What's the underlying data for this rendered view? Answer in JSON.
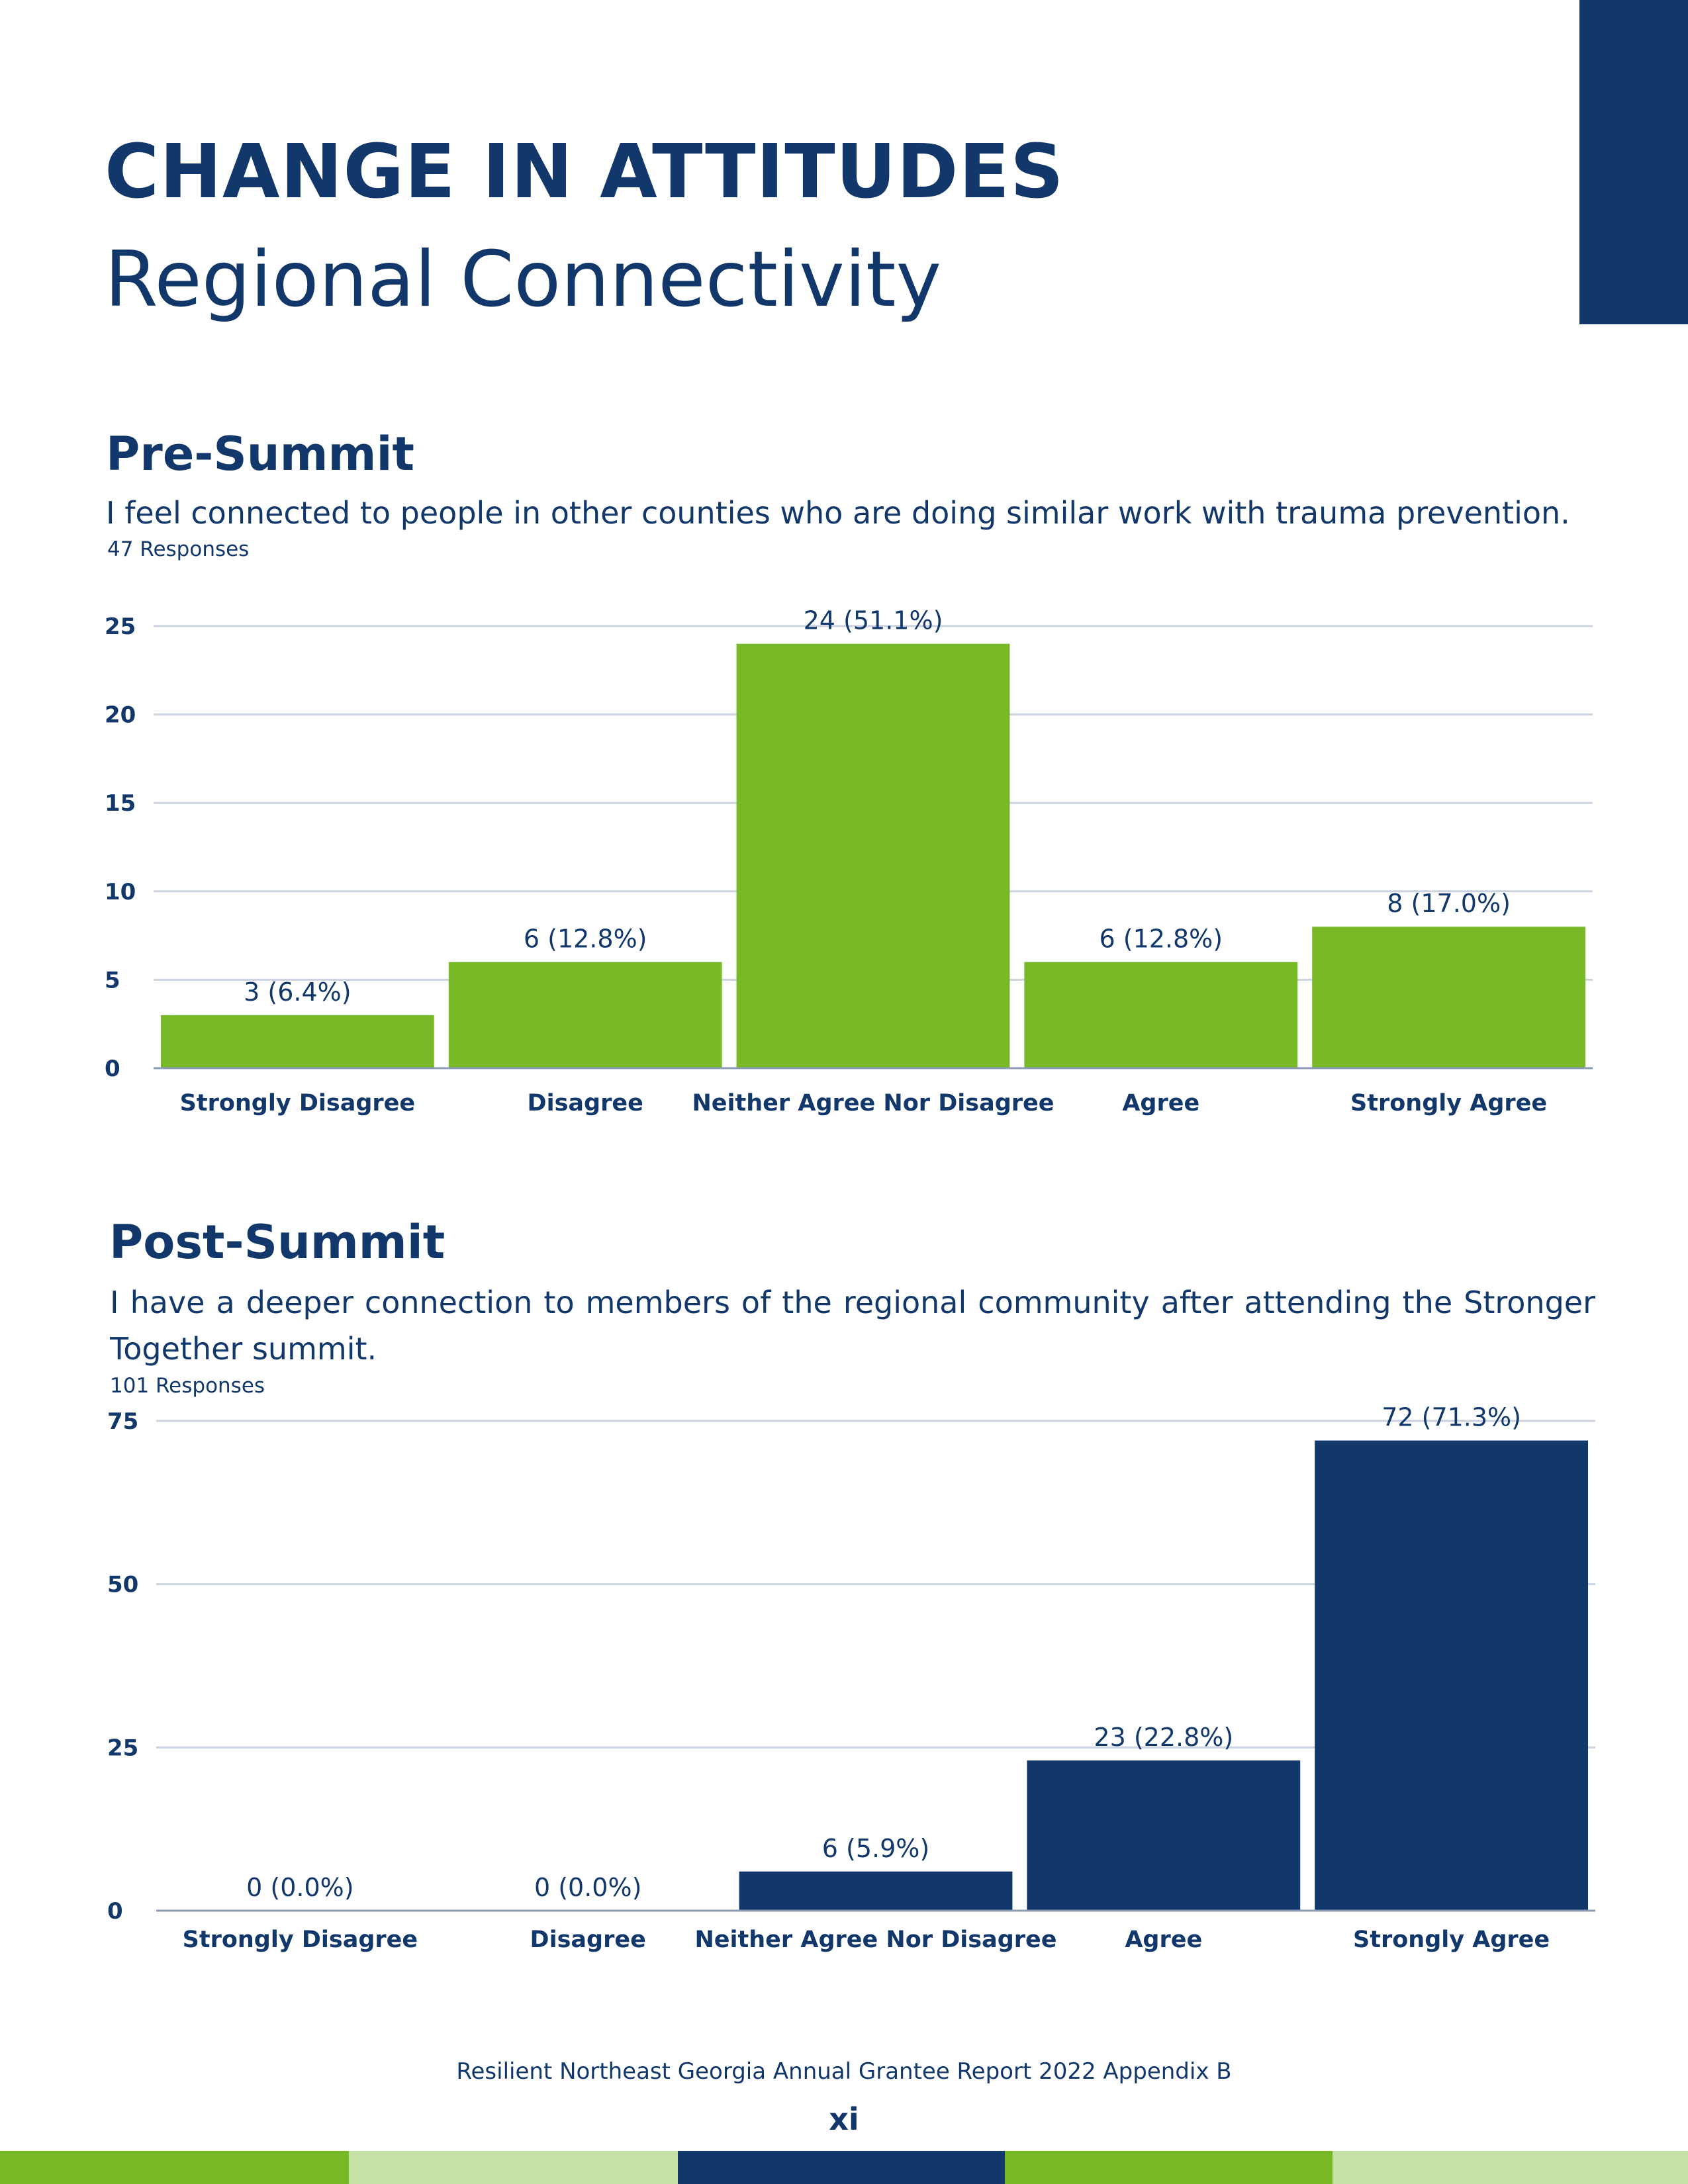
{
  "header": {
    "title": "CHANGE IN ATTITUDES",
    "subtitle": "Regional Connectivity"
  },
  "colors": {
    "navy": "#12386b",
    "green": "#78b928",
    "light_green": "#c5e1a5",
    "grid": "#c9d2de"
  },
  "sections": [
    {
      "heading": "Pre-Summit",
      "question": "I feel connected to people in other counties who are doing similar work with trauma prevention.",
      "responses": "47 Responses"
    },
    {
      "heading": "Post-Summit",
      "question": "I have a deeper connection to members of the regional community after attending the Stronger Together summit.",
      "responses": "101 Responses"
    }
  ],
  "chart_data": [
    {
      "type": "bar",
      "categories": [
        "Strongly Disagree",
        "Disagree",
        "Neither Agree Nor Disagree",
        "Agree",
        "Strongly Agree"
      ],
      "values": [
        3,
        6,
        24,
        6,
        8
      ],
      "data_labels": [
        "3 (6.4%)",
        "6 (12.8%)",
        "24 (51.1%)",
        "6 (12.8%)",
        "8 (17.0%)"
      ],
      "yticks": [
        0,
        5,
        10,
        15,
        20,
        25
      ],
      "ylim": [
        0,
        25
      ],
      "grid": true,
      "color": "#78b928"
    },
    {
      "type": "bar",
      "categories": [
        "Strongly Disagree",
        "Disagree",
        "Neither Agree Nor Disagree",
        "Agree",
        "Strongly Agree"
      ],
      "values": [
        0,
        0,
        6,
        23,
        72
      ],
      "data_labels": [
        "0 (0.0%)",
        "0 (0.0%)",
        "6 (5.9%)",
        "23 (22.8%)",
        "72 (71.3%)"
      ],
      "yticks": [
        0,
        25,
        50,
        75
      ],
      "ylim": [
        0,
        75
      ],
      "grid": true,
      "color": "#12386b"
    }
  ],
  "footer": {
    "text": "Resilient Northeast Georgia Annual Grantee Report 2022 Appendix B",
    "page_number": "xi"
  }
}
